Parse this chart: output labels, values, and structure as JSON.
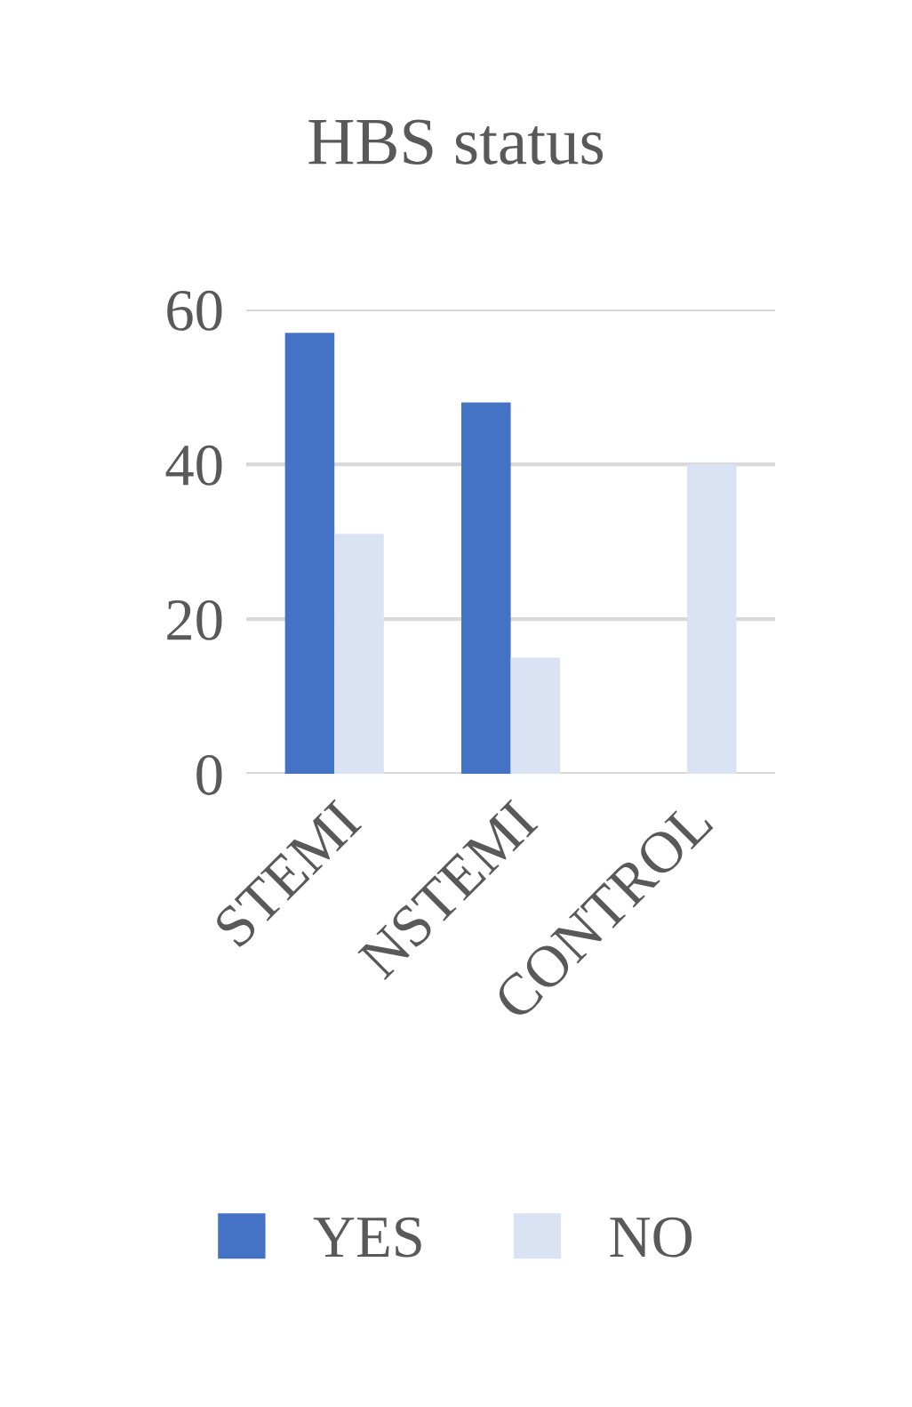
{
  "chart_data": {
    "type": "bar",
    "title": "HBS status",
    "categories": [
      "STEMI",
      "NSTEMI",
      "CONTROL"
    ],
    "series": [
      {
        "name": "YES",
        "color": "#4472c4",
        "values": [
          57,
          48,
          0
        ]
      },
      {
        "name": "NO",
        "color": "#dae3f3",
        "values": [
          31,
          15,
          40
        ]
      }
    ],
    "ylim": [
      0,
      60
    ],
    "yticks": [
      0,
      20,
      40,
      60
    ],
    "grid": "y",
    "legend": "bottom"
  }
}
